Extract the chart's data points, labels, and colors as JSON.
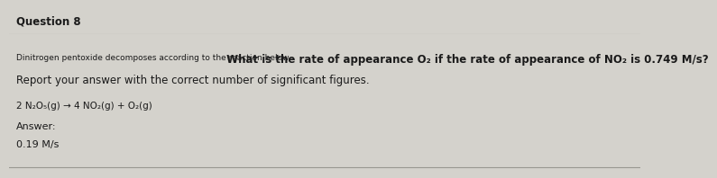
{
  "title": "Question 8",
  "title_bg": "#c8c6c0",
  "bg_color": "#c8c6c0",
  "content_bg": "#d4d2cc",
  "small_text": "Dinitrogen pentoxide decomposes according to the reaction below.",
  "main_question": " What is the rate of appearance O₂ if the rate of appearance of NO₂ is 0.749 M/s?",
  "instruction": "Report your answer with the correct number of significant figures.",
  "equation": "2 N₂O₅(g) → 4 NO₂(g) + O₂(g)",
  "answer_label": "Answer:",
  "answer_value": "0.19 M/s",
  "title_fontsize": 8.5,
  "small_fontsize": 6.5,
  "main_fontsize": 8.5,
  "instruction_fontsize": 8.5,
  "eq_fontsize": 7.5,
  "answer_fontsize": 8.0
}
